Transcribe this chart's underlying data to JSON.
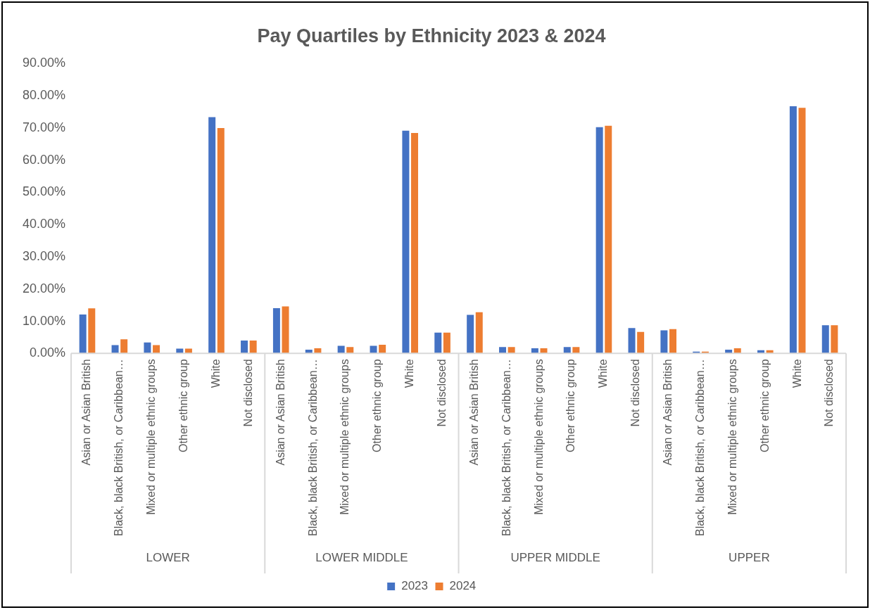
{
  "chart_data": {
    "type": "bar",
    "title": "Pay Quartiles by Ethnicity 2023 & 2024",
    "categories": [
      "Asian or Asian British",
      "Black, black British, or Caribbean…",
      "Mixed or multiple ethnic groups",
      "Other ethnic group",
      "White",
      "Not disclosed",
      "Asian or Asian British",
      "Black, black British, or Caribbean…",
      "Mixed or multiple ethnic groups",
      "Other ethnic group",
      "White",
      "Not disclosed",
      "Asian or Asian British",
      "Black, black British, or Caribbean…",
      "Mixed or multiple ethnic groups",
      "Other ethnic group",
      "White",
      "Not disclosed",
      "Asian or Asian British",
      "Black, black British, or Caribbean…",
      "Mixed or multiple ethnic groups",
      "Other ethnic group",
      "White",
      "Not disclosed"
    ],
    "series": [
      {
        "name": "2023",
        "color": "#4472c4",
        "values": [
          12.3,
          2.8,
          3.6,
          1.7,
          73.6,
          4.2,
          14.3,
          1.4,
          2.6,
          2.6,
          69.4,
          6.7,
          12.2,
          2.2,
          1.8,
          2.2,
          70.5,
          8.1,
          7.4,
          0.8,
          1.4,
          1.2,
          77.0,
          9.0
        ]
      },
      {
        "name": "2024",
        "color": "#ed7d31",
        "values": [
          14.2,
          4.6,
          2.8,
          1.7,
          70.2,
          4.2,
          14.8,
          1.8,
          2.2,
          2.9,
          68.7,
          6.7,
          13.0,
          2.2,
          1.8,
          2.2,
          70.9,
          6.9,
          7.8,
          0.8,
          1.8,
          1.2,
          76.5,
          9.0
        ]
      }
    ],
    "annotations": [
      "LOWER",
      "LOWER MIDDLE",
      "UPPER MIDDLE",
      "UPPER"
    ],
    "ylim": [
      0,
      90
    ],
    "yticks": [
      {
        "value": 0,
        "label": "0.00%"
      },
      {
        "value": 10,
        "label": "10.00%"
      },
      {
        "value": 20,
        "label": "20.00%"
      },
      {
        "value": 30,
        "label": "30.00%"
      },
      {
        "value": 40,
        "label": "40.00%"
      },
      {
        "value": 50,
        "label": "50.00%"
      },
      {
        "value": 60,
        "label": "60.00%"
      },
      {
        "value": 70,
        "label": "70.00%"
      },
      {
        "value": 80,
        "label": "80.00%"
      },
      {
        "value": 90,
        "label": "90.00%"
      }
    ],
    "grid": false,
    "legend": "bottom"
  }
}
